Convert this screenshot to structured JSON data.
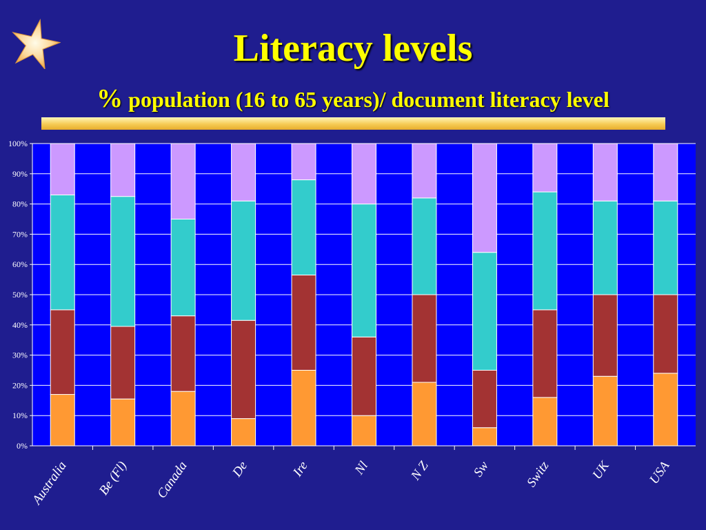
{
  "slide": {
    "title": "Literacy levels",
    "subtitle_prefix": "%",
    "subtitle": "population (16 to 65 years)/ document literacy level"
  },
  "colors": {
    "background": "#1f1d8f",
    "plot_background": "#0000ff",
    "title": "#ffff00",
    "gridline": "#ffffff",
    "level_1": "#ff9933",
    "level_2": "#a33333",
    "level_3": "#33cccc",
    "level_4": "#cc99ff"
  },
  "chart_data": {
    "type": "bar",
    "stacked": true,
    "percent_axis": true,
    "categories": [
      "Australia",
      "Be (Fl)",
      "Canada",
      "De",
      "Ire",
      "Nl",
      "N Z",
      "Sw",
      "Switz",
      "UK",
      "USA"
    ],
    "series": [
      {
        "values": [
          17,
          15.5,
          18,
          9,
          25,
          10,
          21,
          6,
          16,
          23,
          24
        ]
      },
      {
        "values": [
          28,
          24,
          25,
          32.5,
          31.5,
          26,
          29,
          19,
          29,
          27,
          26
        ]
      },
      {
        "values": [
          38,
          43,
          32,
          39.5,
          31.5,
          44,
          32,
          39,
          39,
          31,
          31
        ]
      },
      {
        "values": [
          17,
          17.5,
          25,
          19,
          12,
          20,
          18,
          36,
          16,
          19,
          19
        ]
      }
    ],
    "ylim": [
      0,
      100
    ],
    "yticks": [
      "0%",
      "10%",
      "20%",
      "30%",
      "40%",
      "50%",
      "60%",
      "70%",
      "80%",
      "90%",
      "100%"
    ],
    "grid": true
  }
}
